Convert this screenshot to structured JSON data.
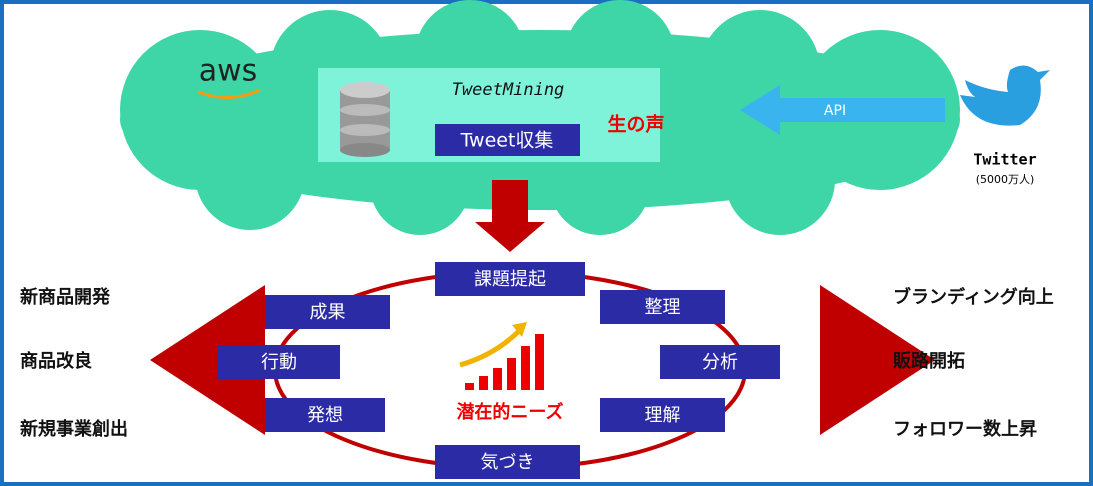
{
  "cloud": {
    "brand": "aws"
  },
  "system": {
    "title": "TweetMining",
    "module": "Tweet収集",
    "voice": "生の声"
  },
  "api": "API",
  "source": {
    "name": "Twitter",
    "users": "(5000万人)"
  },
  "cycle": {
    "center": "潜在的ニーズ",
    "steps": [
      "課題提起",
      "整理",
      "分析",
      "理解",
      "気づき",
      "発想",
      "行動",
      "成果"
    ]
  },
  "outcomes": {
    "left": [
      "新商品開発",
      "商品改良",
      "新規事業創出"
    ],
    "right": [
      "ブランディング向上",
      "販路開拓",
      "フォロワー数上昇"
    ]
  }
}
